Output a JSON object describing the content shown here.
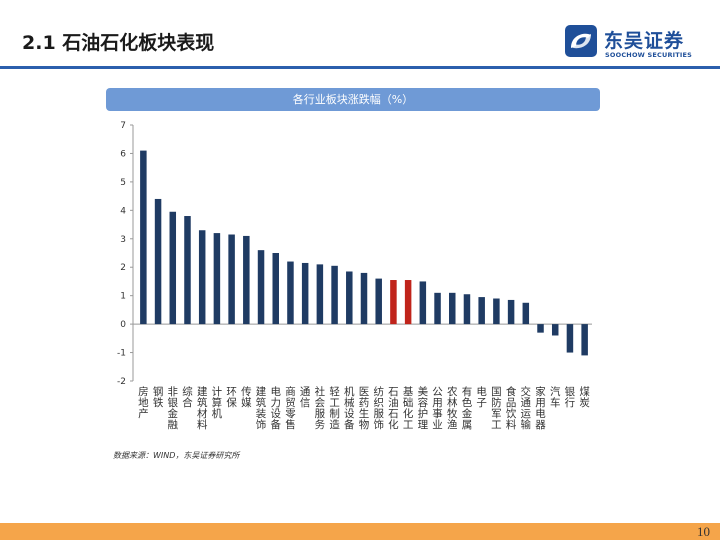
{
  "slide": {
    "title": "2.1 石油石化板块表现",
    "page_number": "10"
  },
  "logo": {
    "name_cn": "东吴证券",
    "name_en": "SOOCHOW SECURITIES",
    "color": "#1f4f99"
  },
  "colors": {
    "bar_default": "#1f3b63",
    "bar_highlight": "#c0241b",
    "title_bar": "#6f9ad6",
    "header_rule": "#2b5fad",
    "footer_bar": "#f5a54a"
  },
  "source": "数据来源：WIND，东吴证券研究所",
  "chart_data": {
    "type": "bar",
    "title": "各行业板块涨跌幅（%）",
    "xlabel": "",
    "ylabel": "",
    "ylim": [
      -2,
      7
    ],
    "yticks": [
      7,
      6,
      5,
      4,
      3,
      2,
      1,
      0,
      -1,
      -2
    ],
    "grid": false,
    "legend": "none",
    "highlight": [
      "石油石化",
      "基础化工"
    ],
    "categories": [
      "房地产",
      "钢铁",
      "非银金融",
      "综合",
      "建筑材料",
      "计算机",
      "环保",
      "传媒",
      "建筑装饰",
      "电力设备",
      "商贸零售",
      "通信",
      "社会服务",
      "轻工制造",
      "机械设备",
      "医药生物",
      "纺织服饰",
      "石油石化",
      "基础化工",
      "美容护理",
      "公用事业",
      "农林牧渔",
      "有色金属",
      "电子",
      "国防军工",
      "食品饮料",
      "交通运输",
      "家用电器",
      "汽车",
      "银行",
      "煤炭"
    ],
    "values": [
      6.1,
      4.4,
      3.95,
      3.8,
      3.3,
      3.2,
      3.15,
      3.1,
      2.6,
      2.5,
      2.2,
      2.15,
      2.1,
      2.05,
      1.85,
      1.8,
      1.6,
      1.55,
      1.55,
      1.5,
      1.1,
      1.1,
      1.05,
      0.95,
      0.9,
      0.85,
      0.75,
      -0.3,
      -0.4,
      -1.0,
      -1.1
    ]
  }
}
